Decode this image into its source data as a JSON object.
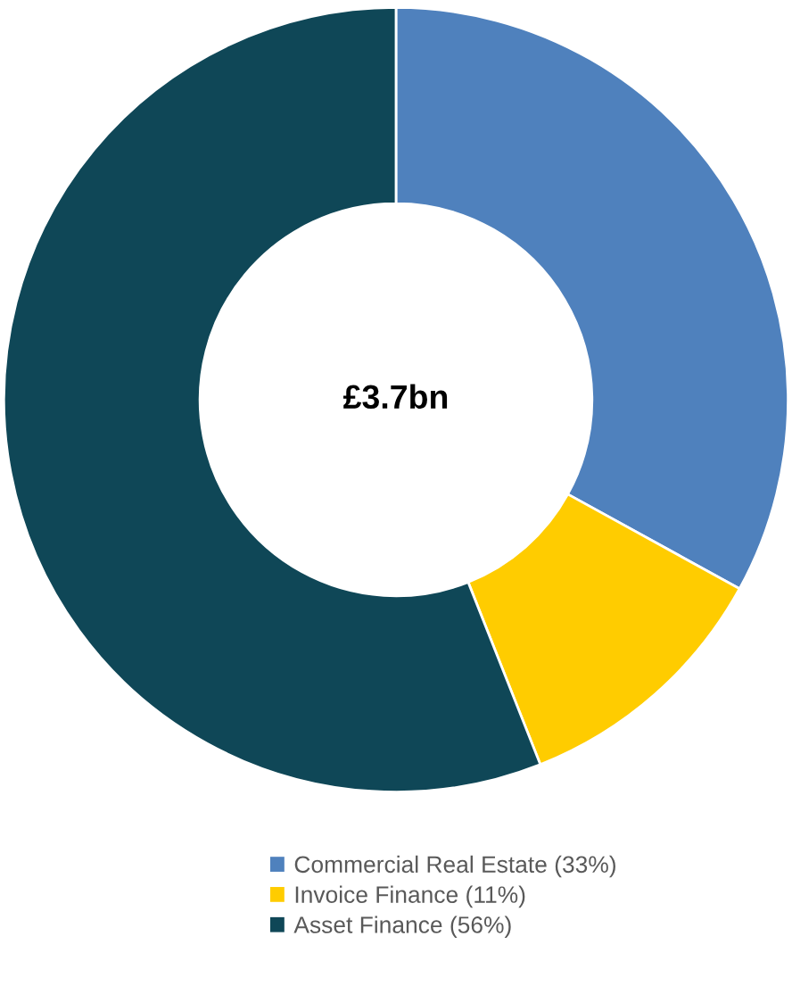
{
  "chart_data": {
    "type": "donut",
    "categories": [
      "Commercial Real Estate (33%)",
      "Invoice Finance (11%)",
      "Asset Finance (56%)"
    ],
    "values": [
      33,
      11,
      56
    ],
    "colors": [
      "#4f81bd",
      "#ffcc00",
      "#0f4757"
    ],
    "annotations": [
      "£3.7bn"
    ],
    "legend": "bottom"
  }
}
